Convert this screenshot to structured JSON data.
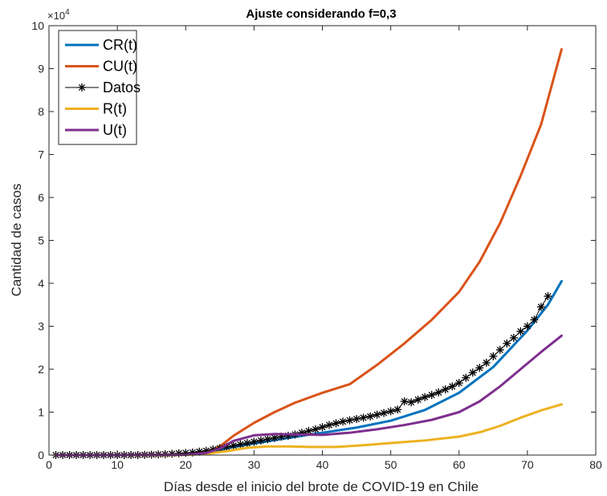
{
  "chart_data": {
    "type": "line",
    "title": "Ajuste considerando f=0,3",
    "xlabel": "Días desde el inicio del brote de COVID-19 en Chile",
    "ylabel": "Cantidad de casos",
    "xlim": [
      0,
      80
    ],
    "ylim": [
      0,
      100000
    ],
    "x_ticks": [
      "0",
      "10",
      "20",
      "30",
      "40",
      "50",
      "60",
      "70",
      "80"
    ],
    "y_ticks": [
      "0",
      "1",
      "2",
      "3",
      "4",
      "5",
      "6",
      "7",
      "8",
      "9",
      "10"
    ],
    "y_multiplier": {
      "base": "×10",
      "exponent": "4"
    },
    "grid": false,
    "legend_position": "top-left",
    "series": [
      {
        "name": "CR(t)",
        "color": "#0072BD",
        "style": "line",
        "points": [
          [
            1,
            0
          ],
          [
            10,
            0
          ],
          [
            20,
            100
          ],
          [
            23,
            500
          ],
          [
            25,
            1200
          ],
          [
            27,
            1900
          ],
          [
            30,
            2700
          ],
          [
            35,
            4000
          ],
          [
            40,
            5200
          ],
          [
            45,
            6400
          ],
          [
            50,
            8000
          ],
          [
            55,
            10500
          ],
          [
            60,
            14500
          ],
          [
            65,
            20500
          ],
          [
            70,
            29000
          ],
          [
            73,
            35000
          ],
          [
            75,
            40500
          ]
        ]
      },
      {
        "name": "CU(t)",
        "color": "#D95319",
        "style": "line",
        "points": [
          [
            1,
            0
          ],
          [
            10,
            0
          ],
          [
            20,
            150
          ],
          [
            23,
            700
          ],
          [
            25,
            2000
          ],
          [
            27,
            4500
          ],
          [
            30,
            7500
          ],
          [
            33,
            10000
          ],
          [
            36,
            12200
          ],
          [
            40,
            14500
          ],
          [
            44,
            16500
          ],
          [
            48,
            21000
          ],
          [
            52,
            26000
          ],
          [
            56,
            31500
          ],
          [
            60,
            38000
          ],
          [
            63,
            45000
          ],
          [
            66,
            54000
          ],
          [
            69,
            65000
          ],
          [
            72,
            77000
          ],
          [
            75,
            94500
          ]
        ]
      },
      {
        "name": "Datos",
        "color": "#000000",
        "style": "markers-line",
        "points": [
          [
            1,
            0
          ],
          [
            2,
            0
          ],
          [
            3,
            0
          ],
          [
            4,
            0
          ],
          [
            5,
            0
          ],
          [
            6,
            0
          ],
          [
            7,
            0
          ],
          [
            8,
            0
          ],
          [
            9,
            0
          ],
          [
            10,
            0
          ],
          [
            11,
            0
          ],
          [
            12,
            0
          ],
          [
            13,
            0
          ],
          [
            14,
            50
          ],
          [
            15,
            100
          ],
          [
            16,
            150
          ],
          [
            17,
            200
          ],
          [
            18,
            300
          ],
          [
            19,
            400
          ],
          [
            20,
            500
          ],
          [
            21,
            600
          ],
          [
            22,
            800
          ],
          [
            23,
            1000
          ],
          [
            24,
            1300
          ],
          [
            25,
            1600
          ],
          [
            26,
            1900
          ],
          [
            27,
            2200
          ],
          [
            28,
            2500
          ],
          [
            29,
            2800
          ],
          [
            30,
            3100
          ],
          [
            31,
            3400
          ],
          [
            32,
            3700
          ],
          [
            33,
            4000
          ],
          [
            34,
            4300
          ],
          [
            35,
            4500
          ],
          [
            36,
            4800
          ],
          [
            37,
            5200
          ],
          [
            38,
            5600
          ],
          [
            39,
            6000
          ],
          [
            40,
            6500
          ],
          [
            41,
            7000
          ],
          [
            42,
            7400
          ],
          [
            43,
            7800
          ],
          [
            44,
            8100
          ],
          [
            45,
            8400
          ],
          [
            46,
            8700
          ],
          [
            47,
            9000
          ],
          [
            48,
            9400
          ],
          [
            49,
            9800
          ],
          [
            50,
            10200
          ],
          [
            51,
            10600
          ],
          [
            52,
            12500
          ],
          [
            53,
            12300
          ],
          [
            54,
            12900
          ],
          [
            55,
            13500
          ],
          [
            56,
            14000
          ],
          [
            57,
            14600
          ],
          [
            58,
            15300
          ],
          [
            59,
            16000
          ],
          [
            60,
            16800
          ],
          [
            61,
            18000
          ],
          [
            62,
            19200
          ],
          [
            63,
            20300
          ],
          [
            64,
            21500
          ],
          [
            65,
            23000
          ],
          [
            66,
            24500
          ],
          [
            67,
            26000
          ],
          [
            68,
            27300
          ],
          [
            69,
            28800
          ],
          [
            70,
            30000
          ],
          [
            71,
            31500
          ],
          [
            72,
            34500
          ],
          [
            73,
            37000
          ]
        ]
      },
      {
        "name": "R(t)",
        "color": "#EDB120",
        "style": "line",
        "points": [
          [
            1,
            0
          ],
          [
            10,
            0
          ],
          [
            20,
            50
          ],
          [
            23,
            300
          ],
          [
            26,
            900
          ],
          [
            29,
            1700
          ],
          [
            32,
            2000
          ],
          [
            35,
            2000
          ],
          [
            38,
            1900
          ],
          [
            42,
            1900
          ],
          [
            46,
            2300
          ],
          [
            50,
            2800
          ],
          [
            55,
            3400
          ],
          [
            60,
            4300
          ],
          [
            63,
            5300
          ],
          [
            66,
            6800
          ],
          [
            69,
            8700
          ],
          [
            72,
            10400
          ],
          [
            75,
            11800
          ]
        ]
      },
      {
        "name": "U(t)",
        "color": "#7E2F8E",
        "style": "line",
        "points": [
          [
            1,
            0
          ],
          [
            10,
            0
          ],
          [
            20,
            100
          ],
          [
            23,
            500
          ],
          [
            25,
            1500
          ],
          [
            27,
            3300
          ],
          [
            30,
            4600
          ],
          [
            33,
            4900
          ],
          [
            36,
            4800
          ],
          [
            40,
            4700
          ],
          [
            44,
            5200
          ],
          [
            48,
            6000
          ],
          [
            52,
            7000
          ],
          [
            56,
            8200
          ],
          [
            60,
            10000
          ],
          [
            63,
            12500
          ],
          [
            66,
            16000
          ],
          [
            69,
            20000
          ],
          [
            72,
            24000
          ],
          [
            75,
            27800
          ]
        ]
      }
    ]
  }
}
